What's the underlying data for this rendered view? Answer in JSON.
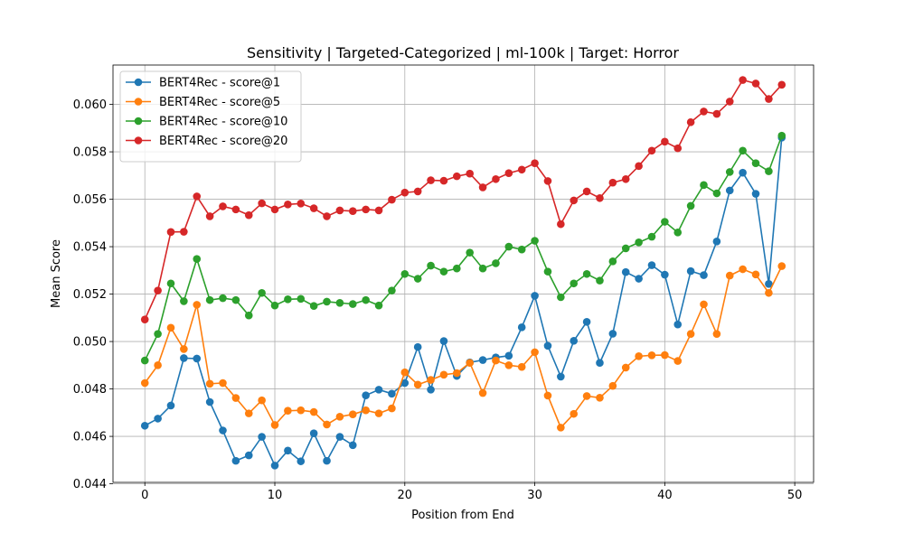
{
  "chart_data": {
    "type": "line",
    "title": "Sensitivity | Targeted-Categorized | ml-100k | Target: Horror",
    "xlabel": "Position from End",
    "ylabel": "Mean Score",
    "xlim": [
      -2.45,
      51.45
    ],
    "ylim": [
      0.04406,
      0.06166
    ],
    "xticks": [
      0,
      10,
      20,
      30,
      40,
      50
    ],
    "yticks": [
      0.044,
      0.046,
      0.048,
      0.05,
      0.052,
      0.054,
      0.056,
      0.058,
      0.06
    ],
    "grid": true,
    "legend_position": "top-left",
    "x": [
      0,
      1,
      2,
      3,
      4,
      5,
      6,
      7,
      8,
      9,
      10,
      11,
      12,
      13,
      14,
      15,
      16,
      17,
      18,
      19,
      20,
      21,
      22,
      23,
      24,
      25,
      26,
      27,
      28,
      29,
      30,
      31,
      32,
      33,
      34,
      35,
      36,
      37,
      38,
      39,
      40,
      41,
      42,
      43,
      44,
      45,
      46,
      47,
      48,
      49
    ],
    "series": [
      {
        "name": "BERT4Rec - score@1",
        "color": "#1f77b4",
        "values": [
          0.04645,
          0.04675,
          0.0473,
          0.0493,
          0.04928,
          0.04745,
          0.04625,
          0.04497,
          0.0452,
          0.04598,
          0.04477,
          0.0454,
          0.04495,
          0.04613,
          0.04497,
          0.04598,
          0.04563,
          0.04773,
          0.04797,
          0.0478,
          0.04825,
          0.04977,
          0.04797,
          0.05002,
          0.04855,
          0.04912,
          0.04922,
          0.04933,
          0.0494,
          0.0506,
          0.05193,
          0.04982,
          0.04852,
          0.05003,
          0.05083,
          0.0491,
          0.05033,
          0.05293,
          0.05265,
          0.05322,
          0.05282,
          0.05072,
          0.05297,
          0.0528,
          0.05422,
          0.05637,
          0.05712,
          0.05623,
          0.05243,
          0.0586
        ]
      },
      {
        "name": "BERT4Rec - score@5",
        "color": "#ff7f0e",
        "values": [
          0.04825,
          0.049,
          0.05058,
          0.04968,
          0.05155,
          0.04822,
          0.04825,
          0.04762,
          0.04697,
          0.04752,
          0.04648,
          0.04708,
          0.0471,
          0.04703,
          0.0465,
          0.04683,
          0.04693,
          0.0471,
          0.04697,
          0.04718,
          0.0487,
          0.04818,
          0.04838,
          0.0486,
          0.04867,
          0.0491,
          0.04783,
          0.0492,
          0.049,
          0.04893,
          0.04955,
          0.04772,
          0.04637,
          0.04695,
          0.0477,
          0.04763,
          0.04813,
          0.0489,
          0.04938,
          0.04942,
          0.04943,
          0.04918,
          0.05032,
          0.05157,
          0.05032,
          0.05278,
          0.05305,
          0.05283,
          0.05205,
          0.05318
        ]
      },
      {
        "name": "BERT4Rec - score@10",
        "color": "#2ca02c",
        "values": [
          0.0492,
          0.05032,
          0.05245,
          0.0517,
          0.05348,
          0.05175,
          0.05183,
          0.05175,
          0.0511,
          0.05205,
          0.05152,
          0.05178,
          0.0518,
          0.0515,
          0.05168,
          0.05163,
          0.05158,
          0.05175,
          0.05152,
          0.05215,
          0.05285,
          0.05265,
          0.0532,
          0.05295,
          0.05308,
          0.05375,
          0.05308,
          0.0533,
          0.054,
          0.05388,
          0.05425,
          0.05295,
          0.05187,
          0.05245,
          0.05285,
          0.05257,
          0.05338,
          0.05393,
          0.05418,
          0.05442,
          0.05505,
          0.0546,
          0.05572,
          0.0566,
          0.05625,
          0.05715,
          0.05805,
          0.05752,
          0.05718,
          0.05868
        ]
      },
      {
        "name": "BERT4Rec - score@20",
        "color": "#d62728",
        "values": [
          0.05093,
          0.05215,
          0.05462,
          0.05463,
          0.05612,
          0.05528,
          0.0557,
          0.05557,
          0.05533,
          0.05583,
          0.05557,
          0.05578,
          0.05582,
          0.05562,
          0.05528,
          0.05553,
          0.0555,
          0.05557,
          0.05553,
          0.05598,
          0.05628,
          0.05633,
          0.0568,
          0.05678,
          0.05697,
          0.05708,
          0.0565,
          0.05685,
          0.0571,
          0.05725,
          0.05752,
          0.05677,
          0.05495,
          0.05595,
          0.05633,
          0.05605,
          0.0567,
          0.05685,
          0.0574,
          0.05805,
          0.05843,
          0.05815,
          0.05925,
          0.0597,
          0.0596,
          0.06012,
          0.06103,
          0.06088,
          0.06023,
          0.06083
        ]
      }
    ]
  }
}
